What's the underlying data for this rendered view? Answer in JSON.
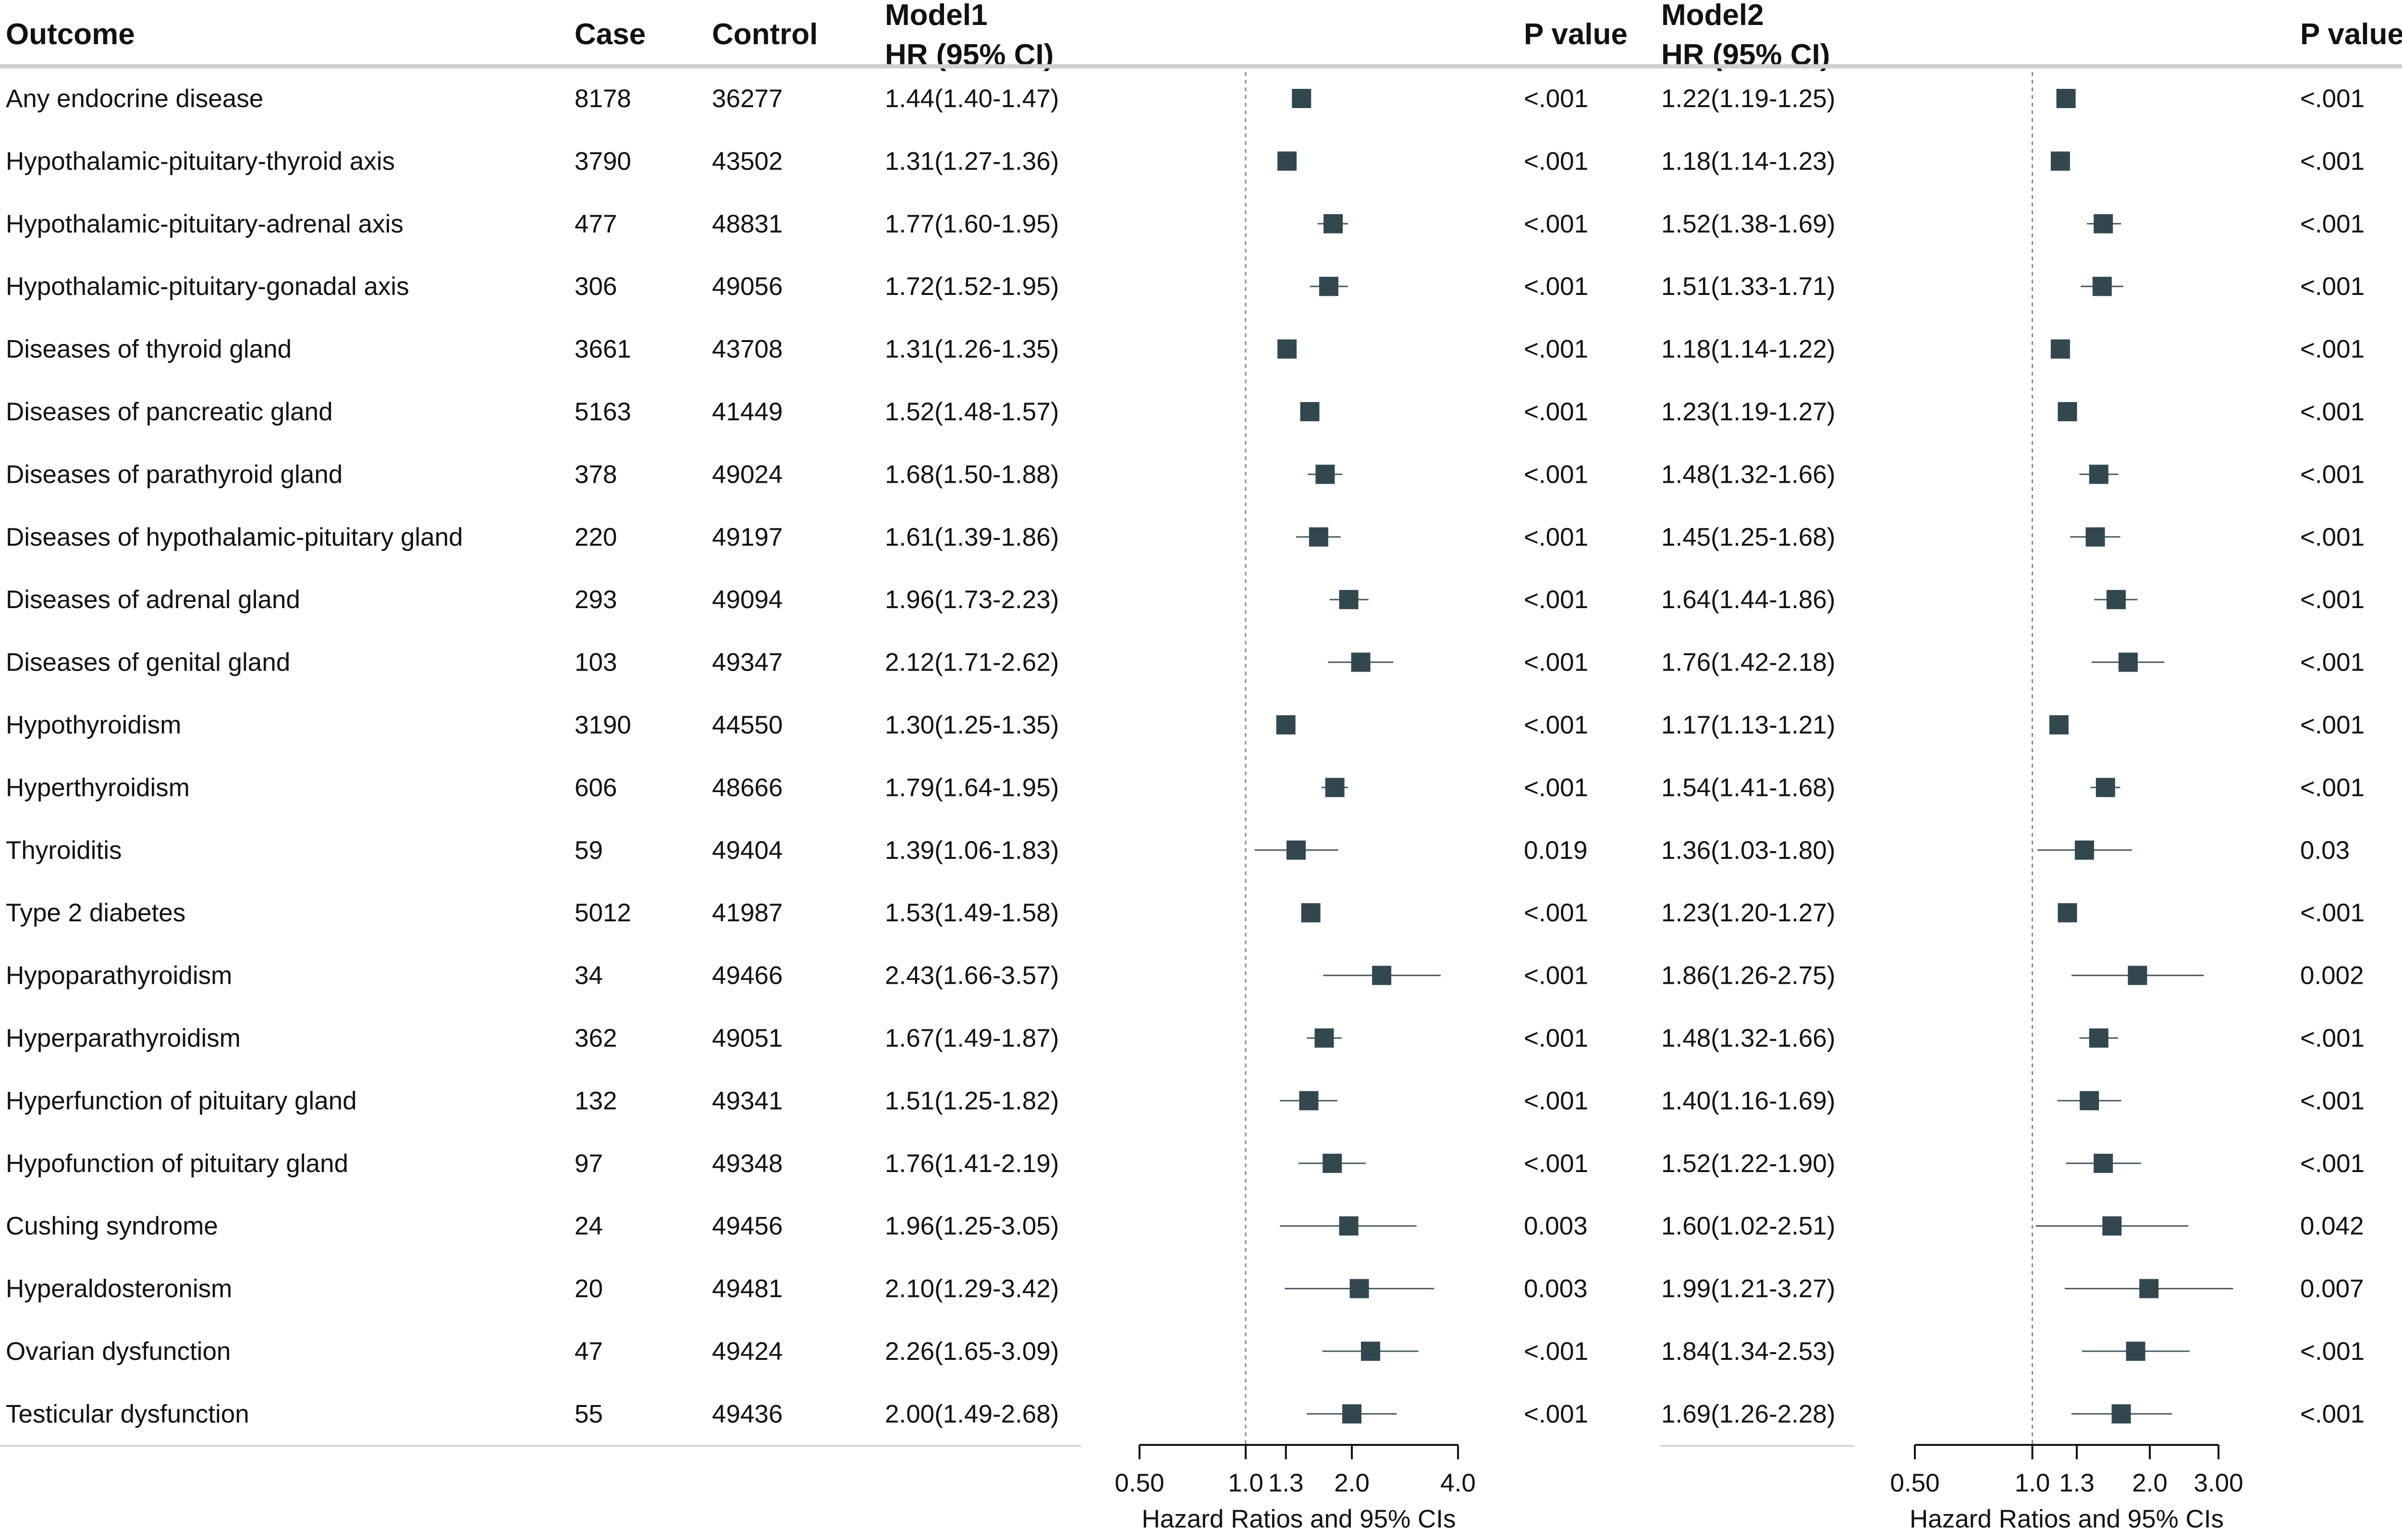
{
  "chart_data": {
    "type": "forest",
    "headers": {
      "outcome": "Outcome",
      "case": "Case",
      "control": "Control",
      "model1_title": "Model1",
      "model1_sub": "HR (95% CI)",
      "p1": "P value",
      "model2_title": "Model2",
      "model2_sub": "HR (95% CI)",
      "p2": "P value"
    },
    "rows": [
      {
        "outcome": "Any endocrine disease",
        "case": "8178",
        "control": "36277",
        "hr1": "1.44(1.40-1.47)",
        "m1": [
          1.44,
          1.4,
          1.47
        ],
        "p1": "<.001",
        "hr2": "1.22(1.19-1.25)",
        "m2": [
          1.22,
          1.19,
          1.25
        ],
        "p2": "<.001"
      },
      {
        "outcome": "Hypothalamic-pituitary-thyroid axis",
        "case": "3790",
        "control": "43502",
        "hr1": "1.31(1.27-1.36)",
        "m1": [
          1.31,
          1.27,
          1.36
        ],
        "p1": "<.001",
        "hr2": "1.18(1.14-1.23)",
        "m2": [
          1.18,
          1.14,
          1.23
        ],
        "p2": "<.001"
      },
      {
        "outcome": "Hypothalamic-pituitary-adrenal axis",
        "case": "477",
        "control": "48831",
        "hr1": "1.77(1.60-1.95)",
        "m1": [
          1.77,
          1.6,
          1.95
        ],
        "p1": "<.001",
        "hr2": "1.52(1.38-1.69)",
        "m2": [
          1.52,
          1.38,
          1.69
        ],
        "p2": "<.001"
      },
      {
        "outcome": "Hypothalamic-pituitary-gonadal axis",
        "case": "306",
        "control": "49056",
        "hr1": "1.72(1.52-1.95)",
        "m1": [
          1.72,
          1.52,
          1.95
        ],
        "p1": "<.001",
        "hr2": "1.51(1.33-1.71)",
        "m2": [
          1.51,
          1.33,
          1.71
        ],
        "p2": "<.001"
      },
      {
        "outcome": "Diseases of thyroid gland",
        "case": "3661",
        "control": "43708",
        "hr1": "1.31(1.26-1.35)",
        "m1": [
          1.31,
          1.26,
          1.35
        ],
        "p1": "<.001",
        "hr2": "1.18(1.14-1.22)",
        "m2": [
          1.18,
          1.14,
          1.22
        ],
        "p2": "<.001"
      },
      {
        "outcome": "Diseases of pancreatic gland",
        "case": "5163",
        "control": "41449",
        "hr1": "1.52(1.48-1.57)",
        "m1": [
          1.52,
          1.48,
          1.57
        ],
        "p1": "<.001",
        "hr2": "1.23(1.19-1.27)",
        "m2": [
          1.23,
          1.19,
          1.27
        ],
        "p2": "<.001"
      },
      {
        "outcome": "Diseases of parathyroid gland",
        "case": "378",
        "control": "49024",
        "hr1": "1.68(1.50-1.88)",
        "m1": [
          1.68,
          1.5,
          1.88
        ],
        "p1": "<.001",
        "hr2": "1.48(1.32-1.66)",
        "m2": [
          1.48,
          1.32,
          1.66
        ],
        "p2": "<.001"
      },
      {
        "outcome": "Diseases of hypothalamic-pituitary gland",
        "case": "220",
        "control": "49197",
        "hr1": "1.61(1.39-1.86)",
        "m1": [
          1.61,
          1.39,
          1.86
        ],
        "p1": "<.001",
        "hr2": "1.45(1.25-1.68)",
        "m2": [
          1.45,
          1.25,
          1.68
        ],
        "p2": "<.001"
      },
      {
        "outcome": "Diseases of adrenal gland",
        "case": "293",
        "control": "49094",
        "hr1": "1.96(1.73-2.23)",
        "m1": [
          1.96,
          1.73,
          2.23
        ],
        "p1": "<.001",
        "hr2": "1.64(1.44-1.86)",
        "m2": [
          1.64,
          1.44,
          1.86
        ],
        "p2": "<.001"
      },
      {
        "outcome": "Diseases of genital gland",
        "case": "103",
        "control": "49347",
        "hr1": "2.12(1.71-2.62)",
        "m1": [
          2.12,
          1.71,
          2.62
        ],
        "p1": "<.001",
        "hr2": "1.76(1.42-2.18)",
        "m2": [
          1.76,
          1.42,
          2.18
        ],
        "p2": "<.001"
      },
      {
        "outcome": "Hypothyroidism",
        "case": "3190",
        "control": "44550",
        "hr1": "1.30(1.25-1.35)",
        "m1": [
          1.3,
          1.25,
          1.35
        ],
        "p1": "<.001",
        "hr2": "1.17(1.13-1.21)",
        "m2": [
          1.17,
          1.13,
          1.21
        ],
        "p2": "<.001"
      },
      {
        "outcome": "Hyperthyroidism",
        "case": "606",
        "control": "48666",
        "hr1": "1.79(1.64-1.95)",
        "m1": [
          1.79,
          1.64,
          1.95
        ],
        "p1": "<.001",
        "hr2": "1.54(1.41-1.68)",
        "m2": [
          1.54,
          1.41,
          1.68
        ],
        "p2": "<.001"
      },
      {
        "outcome": "Thyroiditis",
        "case": "59",
        "control": "49404",
        "hr1": "1.39(1.06-1.83)",
        "m1": [
          1.39,
          1.06,
          1.83
        ],
        "p1": "0.019",
        "hr2": "1.36(1.03-1.80)",
        "m2": [
          1.36,
          1.03,
          1.8
        ],
        "p2": "0.03"
      },
      {
        "outcome": "Type 2 diabetes",
        "case": "5012",
        "control": "41987",
        "hr1": "1.53(1.49-1.58)",
        "m1": [
          1.53,
          1.49,
          1.58
        ],
        "p1": "<.001",
        "hr2": "1.23(1.20-1.27)",
        "m2": [
          1.23,
          1.2,
          1.27
        ],
        "p2": "<.001"
      },
      {
        "outcome": "Hypoparathyroidism",
        "case": "34",
        "control": "49466",
        "hr1": "2.43(1.66-3.57)",
        "m1": [
          2.43,
          1.66,
          3.57
        ],
        "p1": "<.001",
        "hr2": "1.86(1.26-2.75)",
        "m2": [
          1.86,
          1.26,
          2.75
        ],
        "p2": "0.002"
      },
      {
        "outcome": "Hyperparathyroidism",
        "case": "362",
        "control": "49051",
        "hr1": "1.67(1.49-1.87)",
        "m1": [
          1.67,
          1.49,
          1.87
        ],
        "p1": "<.001",
        "hr2": "1.48(1.32-1.66)",
        "m2": [
          1.48,
          1.32,
          1.66
        ],
        "p2": "<.001"
      },
      {
        "outcome": "Hyperfunction of pituitary gland",
        "case": "132",
        "control": "49341",
        "hr1": "1.51(1.25-1.82)",
        "m1": [
          1.51,
          1.25,
          1.82
        ],
        "p1": "<.001",
        "hr2": "1.40(1.16-1.69)",
        "m2": [
          1.4,
          1.16,
          1.69
        ],
        "p2": "<.001"
      },
      {
        "outcome": "Hypofunction of pituitary gland",
        "case": "97",
        "control": "49348",
        "hr1": "1.76(1.41-2.19)",
        "m1": [
          1.76,
          1.41,
          2.19
        ],
        "p1": "<.001",
        "hr2": "1.52(1.22-1.90)",
        "m2": [
          1.52,
          1.22,
          1.9
        ],
        "p2": "<.001"
      },
      {
        "outcome": "Cushing syndrome",
        "case": "24",
        "control": "49456",
        "hr1": "1.96(1.25-3.05)",
        "m1": [
          1.96,
          1.25,
          3.05
        ],
        "p1": "0.003",
        "hr2": "1.60(1.02-2.51)",
        "m2": [
          1.6,
          1.02,
          2.51
        ],
        "p2": "0.042"
      },
      {
        "outcome": "Hyperaldosteronism",
        "case": "20",
        "control": "49481",
        "hr1": "2.10(1.29-3.42)",
        "m1": [
          2.1,
          1.29,
          3.42
        ],
        "p1": "0.003",
        "hr2": "1.99(1.21-3.27)",
        "m2": [
          1.99,
          1.21,
          3.27
        ],
        "p2": "0.007"
      },
      {
        "outcome": "Ovarian dysfunction",
        "case": "47",
        "control": "49424",
        "hr1": "2.26(1.65-3.09)",
        "m1": [
          2.26,
          1.65,
          3.09
        ],
        "p1": "<.001",
        "hr2": "1.84(1.34-2.53)",
        "m2": [
          1.84,
          1.34,
          2.53
        ],
        "p2": "<.001"
      },
      {
        "outcome": "Testicular dysfunction",
        "case": "55",
        "control": "49436",
        "hr1": "2.00(1.49-2.68)",
        "m1": [
          2.0,
          1.49,
          2.68
        ],
        "p1": "<.001",
        "hr2": "1.69(1.26-2.28)",
        "m2": [
          1.69,
          1.26,
          2.28
        ],
        "p2": "<.001"
      }
    ],
    "axis1": {
      "scale": "log",
      "range": [
        0.5,
        4.0
      ],
      "ref": 1.0,
      "ticks": [
        0.5,
        1.0,
        1.3,
        2.0,
        4.0
      ],
      "tick_labels": [
        "0.50",
        "1.0",
        "1.3",
        "2.0",
        "4.0"
      ],
      "label": "Hazard Ratios and 95% CIs"
    },
    "axis2": {
      "scale": "log",
      "range": [
        0.5,
        3.0
      ],
      "ref": 1.0,
      "ticks": [
        0.5,
        1.0,
        1.3,
        2.0,
        3.0
      ],
      "tick_labels": [
        "0.50",
        "1.0",
        "1.3",
        "2.0",
        "3.00"
      ],
      "label": "Hazard Ratios and 95% CIs"
    },
    "colors": {
      "marker": "#33474f",
      "ci": "#4a5a60",
      "ref": "#888888"
    }
  }
}
